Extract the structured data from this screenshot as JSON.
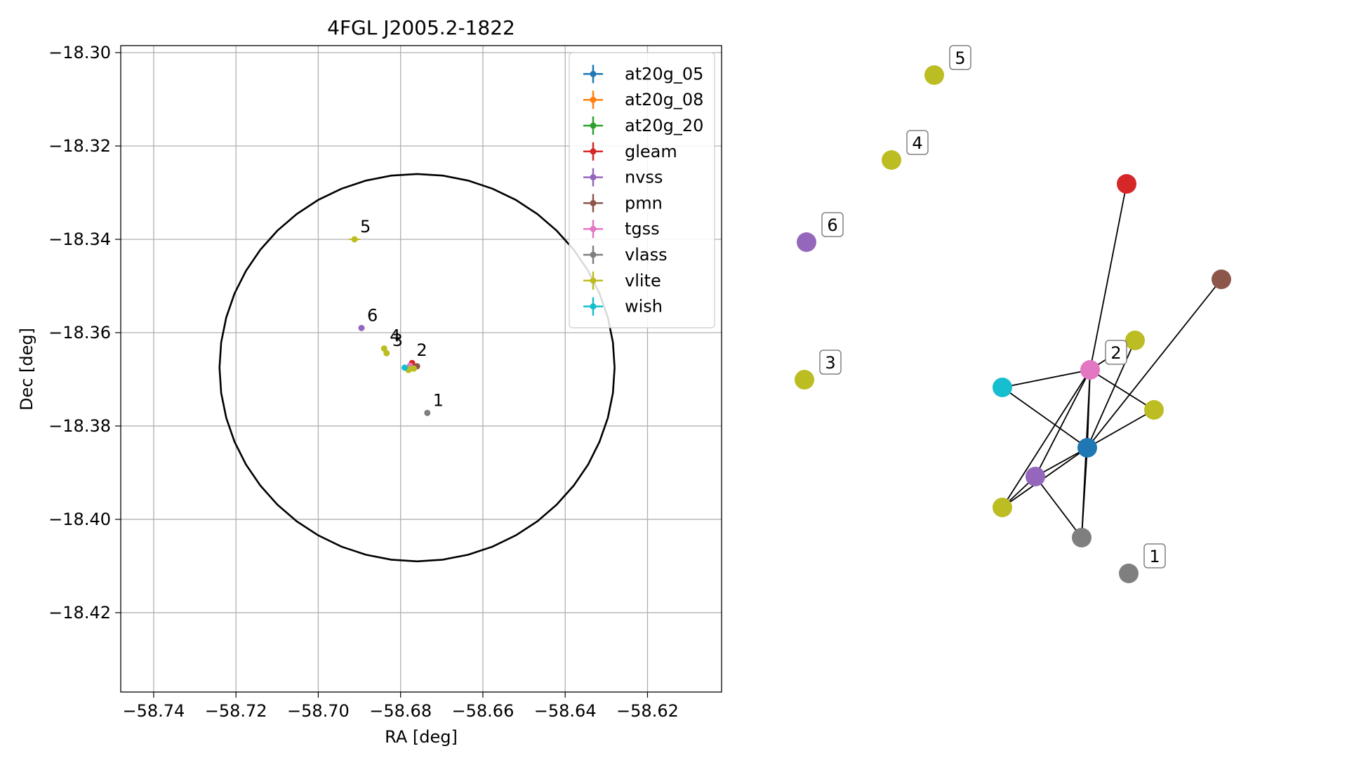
{
  "chart_data": [
    {
      "type": "scatter",
      "title": "4FGL J2005.2-1822",
      "xlabel": "RA [deg]",
      "ylabel": "Dec [deg]",
      "xlim": [
        -58.748,
        -58.602
      ],
      "ylim": [
        -18.437,
        -18.2985
      ],
      "grid": true,
      "legend_position": "top-right",
      "xticks": [
        {
          "value": -58.74,
          "label": "−58.74"
        },
        {
          "value": -58.72,
          "label": "−58.72"
        },
        {
          "value": -58.7,
          "label": "−58.70"
        },
        {
          "value": -58.68,
          "label": "−58.68"
        },
        {
          "value": -58.66,
          "label": "−58.66"
        },
        {
          "value": -58.64,
          "label": "−58.64"
        },
        {
          "value": -58.62,
          "label": "−58.62"
        }
      ],
      "yticks": [
        {
          "value": -18.3,
          "label": "−18.30"
        },
        {
          "value": -18.32,
          "label": "−18.32"
        },
        {
          "value": -18.34,
          "label": "−18.34"
        },
        {
          "value": -18.36,
          "label": "−18.36"
        },
        {
          "value": -18.38,
          "label": "−18.38"
        },
        {
          "value": -18.4,
          "label": "−18.40"
        },
        {
          "value": -18.42,
          "label": "−18.42"
        }
      ],
      "circle": {
        "center": [
          -58.676,
          -18.3675
        ],
        "radius_ra": 0.048,
        "radius_dec": 0.0415,
        "color": "#000000"
      },
      "series": [
        {
          "name": "at20g_05",
          "color": "#1f77b4",
          "points": [
            {
              "x": -58.6775,
              "y": -18.3675,
              "xerr": 0.0003,
              "yerr": 0.0003
            }
          ]
        },
        {
          "name": "at20g_08",
          "color": "#ff7f0e",
          "points": [
            {
              "x": -58.6775,
              "y": -18.3672,
              "xerr": 0.0003,
              "yerr": 0.0003
            }
          ]
        },
        {
          "name": "at20g_20",
          "color": "#2ca02c",
          "points": [
            {
              "x": -58.6776,
              "y": -18.3674,
              "xerr": 0.0003,
              "yerr": 0.0003
            }
          ]
        },
        {
          "name": "gleam",
          "color": "#d62728",
          "points": [
            {
              "x": -58.6772,
              "y": -18.3665,
              "xerr": 0.0004,
              "yerr": 0.0004
            }
          ]
        },
        {
          "name": "nvss",
          "color": "#9467bd",
          "points": [
            {
              "x": -58.6895,
              "y": -18.359,
              "xerr": 0.0005,
              "yerr": 0.0004
            },
            {
              "x": -58.6778,
              "y": -18.3677,
              "xerr": 0.0003,
              "yerr": 0.0003
            }
          ]
        },
        {
          "name": "pmn",
          "color": "#8c564b",
          "points": [
            {
              "x": -58.676,
              "y": -18.3672,
              "xerr": 0.0005,
              "yerr": 0.0004
            }
          ]
        },
        {
          "name": "tgss",
          "color": "#e377c2",
          "points": [
            {
              "x": -58.6777,
              "y": -18.3671,
              "xerr": 0.0003,
              "yerr": 0.0003
            }
          ]
        },
        {
          "name": "vlass",
          "color": "#7f7f7f",
          "points": [
            {
              "x": -58.6735,
              "y": -18.3772,
              "xerr": 0.0002,
              "yerr": 0.0002
            },
            {
              "x": -58.6778,
              "y": -18.3678,
              "xerr": 0.0002,
              "yerr": 0.0002
            }
          ]
        },
        {
          "name": "vlite",
          "color": "#bcbd22",
          "points": [
            {
              "x": -58.6912,
              "y": -18.34,
              "xerr": 0.0014,
              "yerr": 0.0003
            },
            {
              "x": -58.684,
              "y": -18.3634,
              "xerr": 0.0004,
              "yerr": 0.0005
            },
            {
              "x": -58.6834,
              "y": -18.3644,
              "xerr": 0.0004,
              "yerr": 0.0005
            },
            {
              "x": -58.6778,
              "y": -18.3678,
              "xerr": 0.0003,
              "yerr": 0.0005
            },
            {
              "x": -58.6768,
              "y": -18.3677,
              "xerr": 0.0003,
              "yerr": 0.0003
            },
            {
              "x": -58.6781,
              "y": -18.368,
              "xerr": 0.0003,
              "yerr": 0.0003
            }
          ]
        },
        {
          "name": "wish",
          "color": "#17becf",
          "points": [
            {
              "x": -58.679,
              "y": -18.3675,
              "xerr": 0.0004,
              "yerr": 0.0003
            }
          ]
        }
      ],
      "annotations": [
        {
          "text": "5",
          "x": -58.6912,
          "y": -18.34
        },
        {
          "text": "6",
          "x": -58.6895,
          "y": -18.359
        },
        {
          "text": "4",
          "x": -58.684,
          "y": -18.3634
        },
        {
          "text": "3",
          "x": -58.6834,
          "y": -18.3644
        },
        {
          "text": "2",
          "x": -58.6775,
          "y": -18.3665
        },
        {
          "text": "1",
          "x": -58.6735,
          "y": -18.3772
        }
      ]
    },
    {
      "type": "network",
      "nodes": [
        {
          "id": "n5",
          "color": "#bcbd22",
          "label": "5"
        },
        {
          "id": "n4",
          "color": "#bcbd22",
          "label": "4"
        },
        {
          "id": "n6",
          "color": "#9467bd",
          "label": "6"
        },
        {
          "id": "n3",
          "color": "#bcbd22",
          "label": "3"
        },
        {
          "id": "n1",
          "color": "#7f7f7f",
          "label": "1"
        },
        {
          "id": "gleam",
          "color": "#d62728",
          "label": ""
        },
        {
          "id": "pmn",
          "color": "#8c564b",
          "label": ""
        },
        {
          "id": "vlite_a",
          "color": "#bcbd22",
          "label": ""
        },
        {
          "id": "tgss",
          "color": "#e377c2",
          "label": "2"
        },
        {
          "id": "wish",
          "color": "#17becf",
          "label": ""
        },
        {
          "id": "vlite_b",
          "color": "#bcbd22",
          "label": ""
        },
        {
          "id": "at20g",
          "color": "#1f77b4",
          "label": ""
        },
        {
          "id": "nvss",
          "color": "#9467bd",
          "label": ""
        },
        {
          "id": "vlite_c",
          "color": "#bcbd22",
          "label": ""
        },
        {
          "id": "vlass",
          "color": "#7f7f7f",
          "label": ""
        }
      ],
      "edges": [
        [
          "tgss",
          "gleam"
        ],
        [
          "at20g",
          "pmn"
        ],
        [
          "tgss",
          "vlite_a"
        ],
        [
          "tgss",
          "wish"
        ],
        [
          "tgss",
          "vlite_b"
        ],
        [
          "tgss",
          "at20g"
        ],
        [
          "tgss",
          "nvss"
        ],
        [
          "tgss",
          "vlite_c"
        ],
        [
          "tgss",
          "vlass"
        ],
        [
          "wish",
          "at20g"
        ],
        [
          "at20g",
          "vlite_b"
        ],
        [
          "at20g",
          "nvss"
        ],
        [
          "at20g",
          "vlite_c"
        ],
        [
          "at20g",
          "vlass"
        ],
        [
          "nvss",
          "vlite_c"
        ],
        [
          "nvss",
          "vlass"
        ],
        [
          "at20g",
          "vlite_a"
        ]
      ]
    }
  ]
}
